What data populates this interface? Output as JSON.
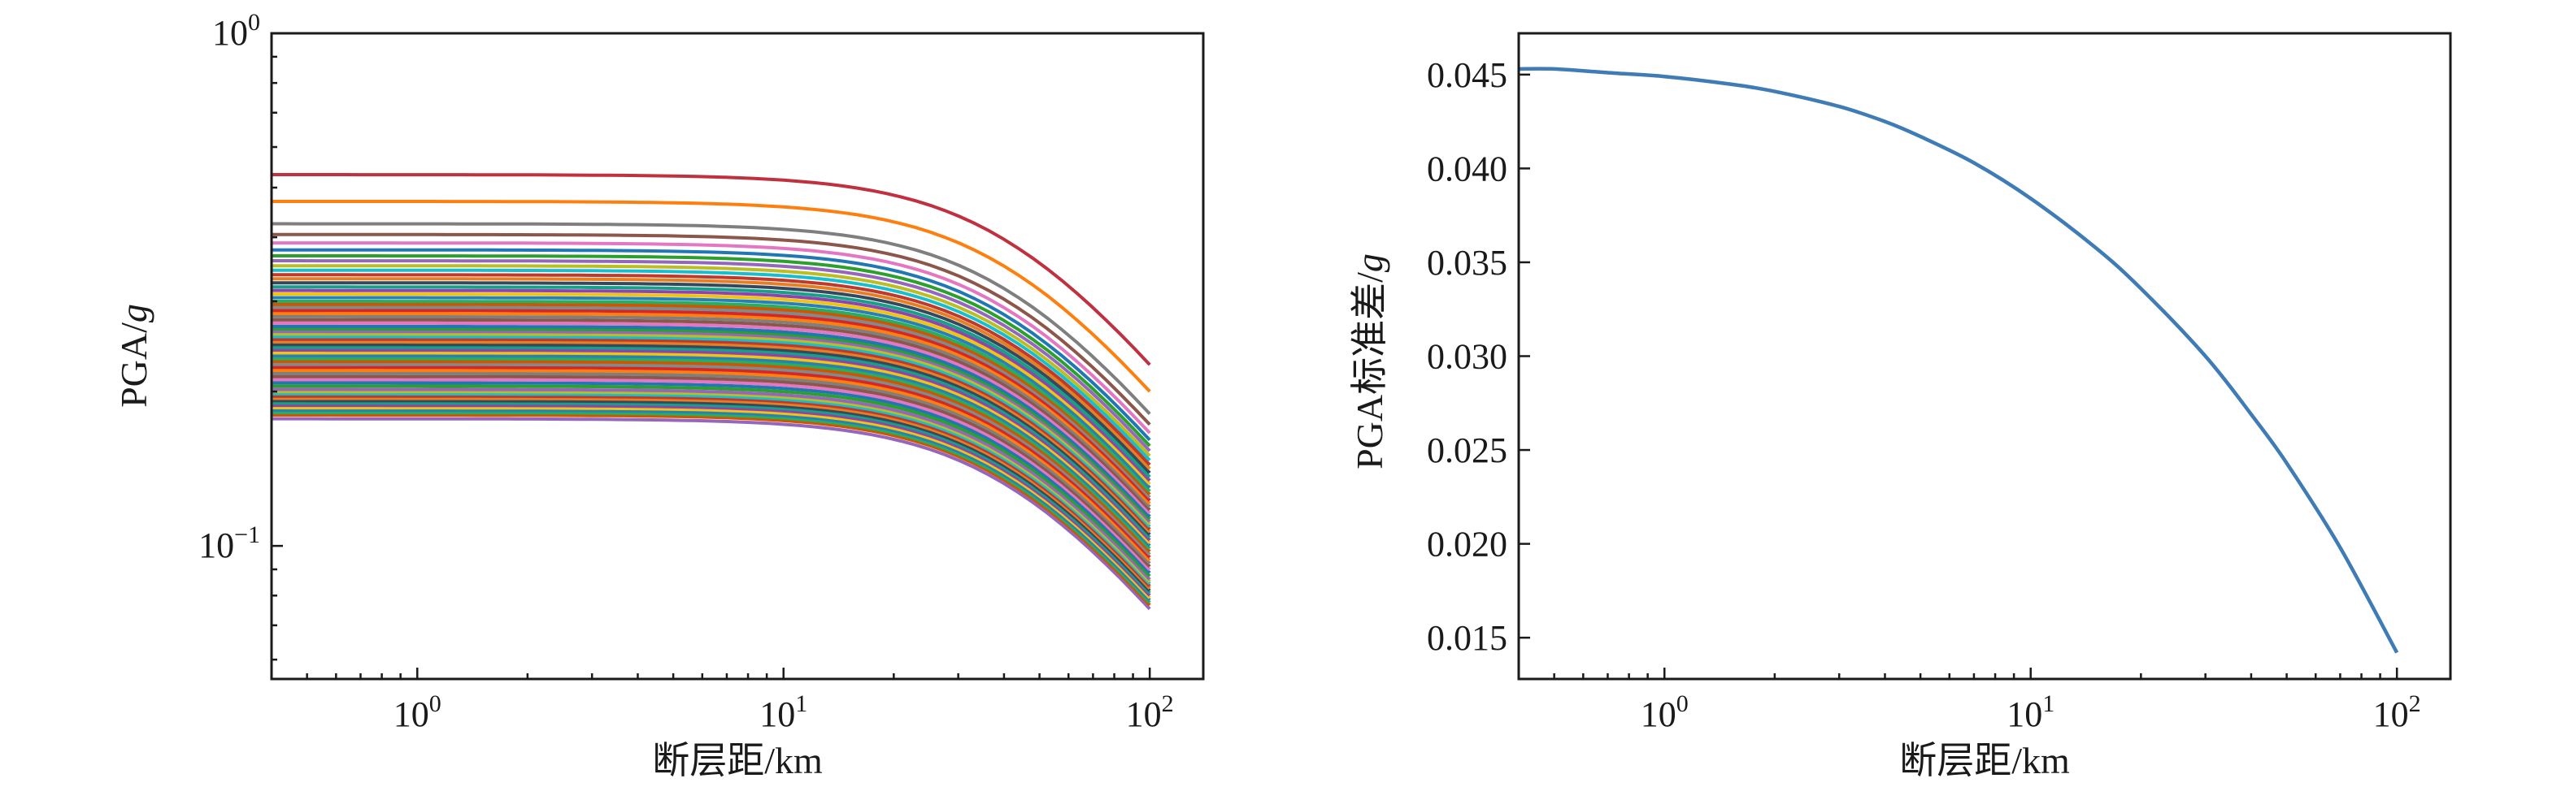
{
  "chart_data": [
    {
      "type": "line",
      "title": "",
      "xlabel": "断层距/km",
      "ylabel": {
        "prefix": "PGA/",
        "italic": "g"
      },
      "xscale": "log",
      "yscale": "log",
      "xlim": [
        0.4,
        140
      ],
      "ylim": [
        0.055,
        1.0
      ],
      "xticks": [
        {
          "value": 1,
          "base": "10",
          "exp": "0"
        },
        {
          "value": 10,
          "base": "10",
          "exp": "1"
        },
        {
          "value": 100,
          "base": "10",
          "exp": "2"
        }
      ],
      "yticks": [
        {
          "value": 0.1,
          "base": "10",
          "exp": "−1"
        },
        {
          "value": 1.0,
          "base": "10",
          "exp": "0"
        }
      ],
      "curve_model": "y = a * (1 + (x / 42)^2)^(-0.45), x from 0.4 to 100 km",
      "series_count": 60,
      "series_start_values_a": [
        0.53,
        0.47,
        0.425,
        0.405,
        0.39,
        0.378,
        0.368,
        0.36,
        0.352,
        0.345,
        0.338,
        0.332,
        0.326,
        0.32,
        0.315,
        0.31,
        0.305,
        0.3,
        0.296,
        0.292,
        0.288,
        0.284,
        0.28,
        0.276,
        0.272,
        0.268,
        0.265,
        0.262,
        0.259,
        0.256,
        0.253,
        0.25,
        0.247,
        0.244,
        0.241,
        0.238,
        0.235,
        0.232,
        0.229,
        0.226,
        0.223,
        0.22,
        0.217,
        0.214,
        0.211,
        0.208,
        0.205,
        0.202,
        0.2,
        0.198,
        0.196,
        0.194,
        0.192,
        0.19,
        0.188,
        0.186,
        0.184,
        0.182,
        0.18,
        0.177
      ],
      "palette": [
        "#d62728",
        "#ff7f0e",
        "#7f7f7f",
        "#8c564b",
        "#e377c2",
        "#1f77b4",
        "#2ca02c",
        "#9467bd",
        "#bcbd22",
        "#17becf",
        "#c0392b",
        "#e67e22",
        "#34495e",
        "#16a085",
        "#8e44ad",
        "#f1c40f",
        "#2980b9",
        "#27ae60",
        "#d35400",
        "#7f8c8d"
      ],
      "lowest_series_color": "#9467bd",
      "top_series_color": "#c0303f"
    },
    {
      "type": "line",
      "title": "",
      "xlabel": "断层距/km",
      "ylabel": {
        "prefix": "PGA标准差/",
        "italic": "g"
      },
      "xscale": "log",
      "yscale": "linear",
      "xlim": [
        0.4,
        140
      ],
      "ylim": [
        0.0128,
        0.0472
      ],
      "xticks": [
        {
          "value": 1,
          "base": "10",
          "exp": "0"
        },
        {
          "value": 10,
          "base": "10",
          "exp": "1"
        },
        {
          "value": 100,
          "base": "10",
          "exp": "2"
        }
      ],
      "yticks": [
        "0.015",
        "0.020",
        "0.025",
        "0.030",
        "0.035",
        "0.040",
        "0.045"
      ],
      "series": [
        {
          "name": "PGA标准差",
          "color": "#3f7cb6",
          "x": [
            0.4,
            0.5,
            0.7,
            1,
            1.5,
            2,
            3,
            4,
            5,
            7,
            10,
            15,
            20,
            30,
            40,
            50,
            70,
            100
          ],
          "y": [
            0.0453,
            0.0453,
            0.0451,
            0.0449,
            0.0445,
            0.0441,
            0.0433,
            0.0425,
            0.0417,
            0.0403,
            0.0384,
            0.0358,
            0.0336,
            0.03,
            0.0269,
            0.0243,
            0.0198,
            0.0142
          ]
        }
      ]
    }
  ]
}
